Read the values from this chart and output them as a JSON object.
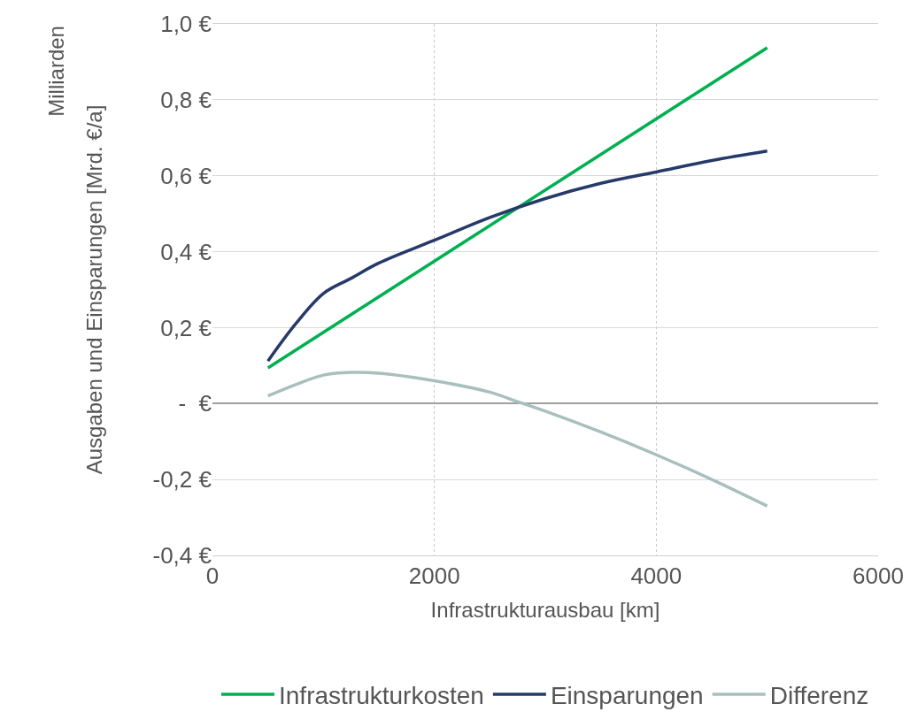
{
  "chart_data": {
    "type": "line",
    "xlabel": "Infrastrukturausbau [km]",
    "ylabel": "Ausgaben und Einsparungen [Mrd. €/a]",
    "annotations": [
      "Milliarden"
    ],
    "xlim": [
      0,
      6000
    ],
    "xticks": [
      0,
      2000,
      4000,
      6000
    ],
    "ylim": [
      -0.4,
      1.0
    ],
    "yticks": [
      {
        "value": -0.4,
        "label": "-0,4 €"
      },
      {
        "value": -0.2,
        "label": "-0,2 €"
      },
      {
        "value": 0,
        "label": "-  €"
      },
      {
        "value": 0.2,
        "label": "0,2 €"
      },
      {
        "value": 0.4,
        "label": "0,4 €"
      },
      {
        "value": 0.6,
        "label": "0,6 €"
      },
      {
        "value": 0.8,
        "label": "0,8 €"
      },
      {
        "value": 1.0,
        "label": "1,0 €"
      }
    ],
    "grid": true,
    "legend": "bottom",
    "marker": "none",
    "line_style": "solid",
    "series": [
      {
        "name": "Infrastrukturkosten",
        "color": "#00b050",
        "x": [
          500,
          5000
        ],
        "values": [
          0.094,
          0.937
        ]
      },
      {
        "name": "Einsparungen",
        "color": "#263a6a",
        "x": [
          500,
          750,
          1000,
          1250,
          1500,
          2000,
          2500,
          3000,
          3500,
          4000,
          4500,
          5000
        ],
        "values": [
          0.112,
          0.21,
          0.29,
          0.33,
          0.37,
          0.43,
          0.49,
          0.54,
          0.58,
          0.61,
          0.64,
          0.665
        ]
      },
      {
        "name": "Differenz",
        "color": "#a9bfbd",
        "x": [
          500,
          750,
          1000,
          1250,
          1500,
          2000,
          2500,
          2750,
          3000,
          3500,
          4000,
          4500,
          5000
        ],
        "values": [
          0.02,
          0.05,
          0.075,
          0.082,
          0.08,
          0.06,
          0.03,
          0.005,
          -0.02,
          -0.075,
          -0.135,
          -0.2,
          -0.27
        ]
      }
    ]
  }
}
